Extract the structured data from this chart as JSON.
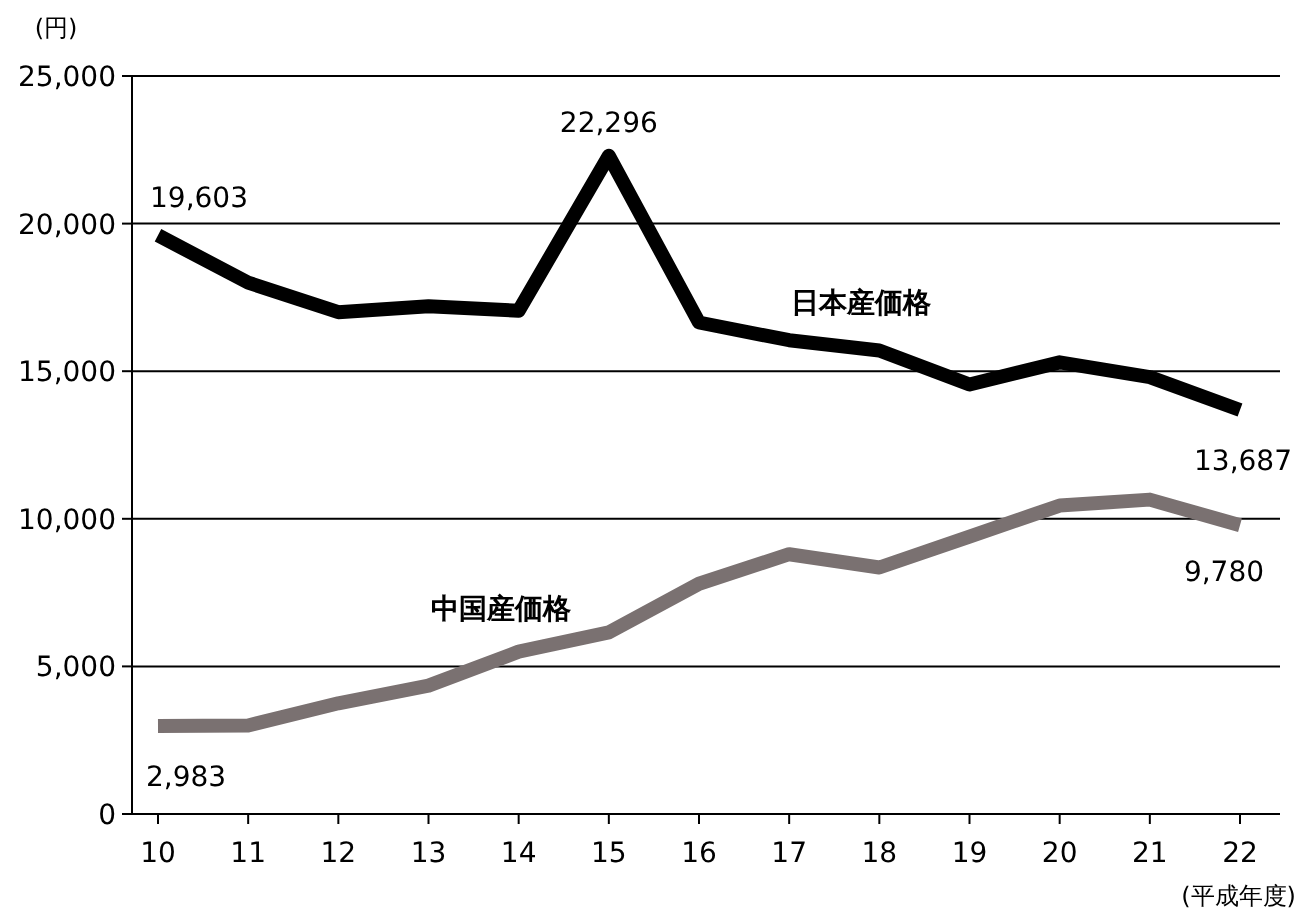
{
  "chart_data": {
    "type": "line",
    "ylabel": "(円)",
    "xlabel": "(平成年度)",
    "categories": [
      "10",
      "11",
      "12",
      "13",
      "14",
      "15",
      "16",
      "17",
      "18",
      "19",
      "20",
      "21",
      "22"
    ],
    "ylim": [
      0,
      25000
    ],
    "yticks": [
      {
        "value": 0,
        "label": "0"
      },
      {
        "value": 5000,
        "label": "5,000"
      },
      {
        "value": 10000,
        "label": "10,000"
      },
      {
        "value": 15000,
        "label": "15,000"
      },
      {
        "value": 20000,
        "label": "20,000"
      },
      {
        "value": 25000,
        "label": "25,000"
      }
    ],
    "grid": "y",
    "legend": false,
    "line_style": "solid",
    "marker": "none",
    "series": [
      {
        "name": "日本産価格",
        "color": "#000000",
        "values": [
          19603,
          18000,
          17000,
          17200,
          17050,
          22296,
          16650,
          16050,
          15700,
          14550,
          15300,
          14800,
          13687
        ],
        "value_labels": [
          "19,603",
          null,
          null,
          null,
          null,
          "22,296",
          null,
          null,
          null,
          null,
          null,
          null,
          "13,687"
        ]
      },
      {
        "name": "中国産価格",
        "color": "#7a7171",
        "values": [
          2983,
          3000,
          3750,
          4350,
          5500,
          6150,
          7800,
          8800,
          8350,
          9400,
          10450,
          10650,
          9780
        ],
        "value_labels": [
          "2,983",
          null,
          null,
          null,
          null,
          null,
          null,
          null,
          null,
          null,
          null,
          null,
          "9,780"
        ]
      }
    ]
  }
}
